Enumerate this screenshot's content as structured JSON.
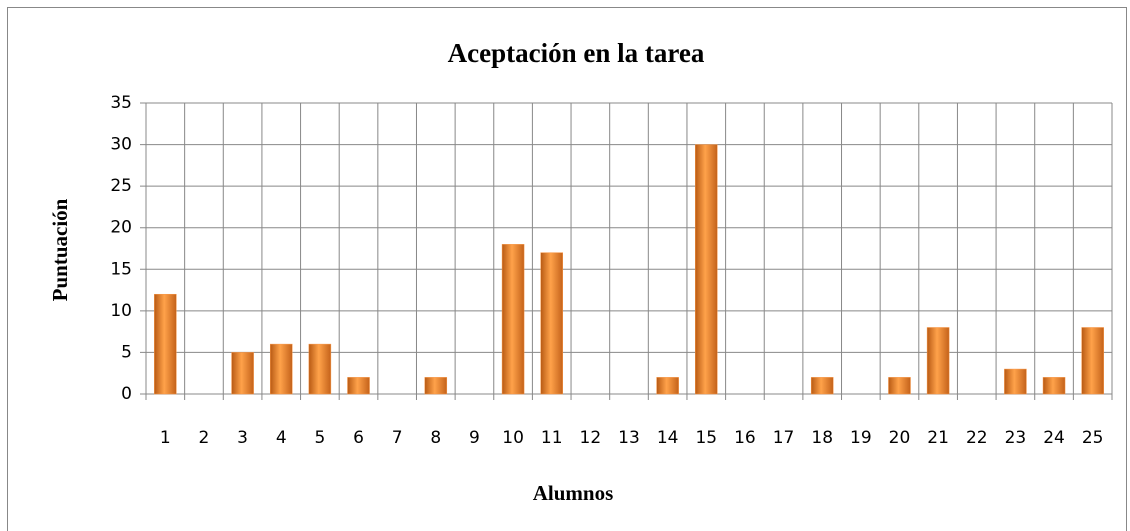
{
  "chart_data": {
    "type": "bar",
    "title": "Aceptación en la tarea",
    "x_label": "Alumnos",
    "y_label": "Puntuación",
    "categories": [
      "1",
      "2",
      "3",
      "4",
      "5",
      "6",
      "7",
      "8",
      "9",
      "10",
      "11",
      "12",
      "13",
      "14",
      "15",
      "16",
      "17",
      "18",
      "19",
      "20",
      "21",
      "22",
      "23",
      "24",
      "25"
    ],
    "values": [
      12,
      0,
      5,
      6,
      6,
      2,
      0,
      2,
      0,
      18,
      17,
      0,
      0,
      2,
      30,
      0,
      0,
      2,
      0,
      2,
      8,
      0,
      3,
      2,
      8
    ],
    "color": "#f79646",
    "ylim": [
      0,
      35
    ],
    "yticks": [
      0,
      5,
      10,
      15,
      20,
      25,
      30,
      35
    ],
    "grid": true
  }
}
